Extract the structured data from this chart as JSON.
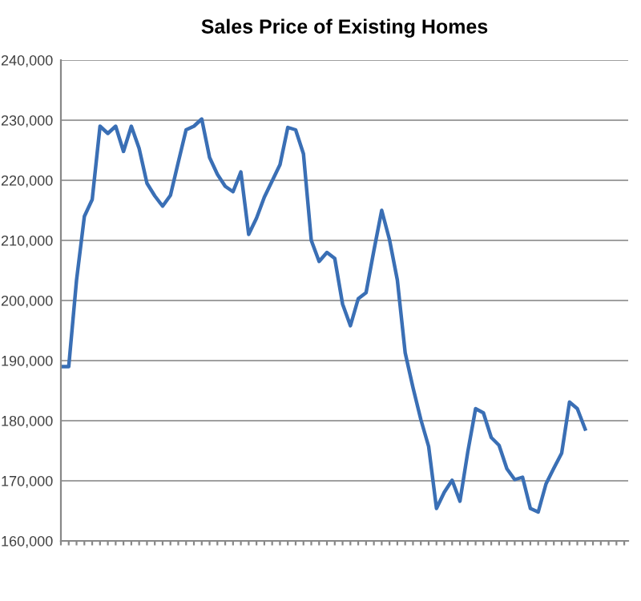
{
  "chart_data": {
    "type": "line",
    "title": "Sales Price of Existing Homes",
    "categories": [
      null,
      null,
      null,
      null,
      null,
      null,
      null,
      null,
      null,
      null,
      null,
      null,
      null,
      null,
      null,
      null,
      null,
      null,
      null,
      null,
      null,
      null,
      null,
      null,
      null,
      null,
      null,
      null,
      null,
      null,
      null,
      null,
      null,
      null,
      null,
      null,
      null,
      null,
      null,
      null,
      null,
      null,
      null,
      null,
      null,
      null,
      null,
      null,
      null,
      null,
      null,
      null,
      null,
      null,
      null,
      null,
      null,
      null,
      null,
      null,
      null,
      null,
      null,
      null,
      null,
      null,
      null,
      null,
      null,
      null,
      null,
      null,
      null
    ],
    "series": [
      {
        "color": "#3a6fb5",
        "values": [
          189000,
          189000,
          203400,
          214000,
          216800,
          229000,
          227800,
          229000,
          224800,
          229000,
          225300,
          219500,
          217400,
          215700,
          217500,
          223000,
          228400,
          229000,
          230200,
          223800,
          221000,
          219000,
          218100,
          221400,
          211000,
          213700,
          217200,
          219900,
          222600,
          228800,
          228400,
          224400,
          210000,
          206500,
          208000,
          207000,
          199400,
          195800,
          200300,
          201300,
          208300,
          215000,
          210100,
          203400,
          191300,
          185500,
          180200,
          175700,
          165400,
          168100,
          170100,
          166600,
          174800,
          182000,
          181300,
          177200,
          175900,
          172000,
          170200,
          170600,
          165400,
          164800,
          169500,
          172100,
          174600,
          183100,
          182000,
          178600,
          null,
          null,
          null,
          null,
          null
        ]
      }
    ],
    "ylim": [
      160000,
      240000
    ],
    "yticks": [
      {
        "value": 160000,
        "label": "160,000"
      },
      {
        "value": 170000,
        "label": "170,000"
      },
      {
        "value": 180000,
        "label": "180,000"
      },
      {
        "value": 190000,
        "label": "190,000"
      },
      {
        "value": 200000,
        "label": "200,000"
      },
      {
        "value": 210000,
        "label": "210,000"
      },
      {
        "value": 220000,
        "label": "220,000"
      },
      {
        "value": 230000,
        "label": "230,000"
      },
      {
        "value": 240000,
        "label": "240,000"
      }
    ],
    "grid": "y",
    "marker": "none",
    "line_style": "solid",
    "legend": false
  }
}
